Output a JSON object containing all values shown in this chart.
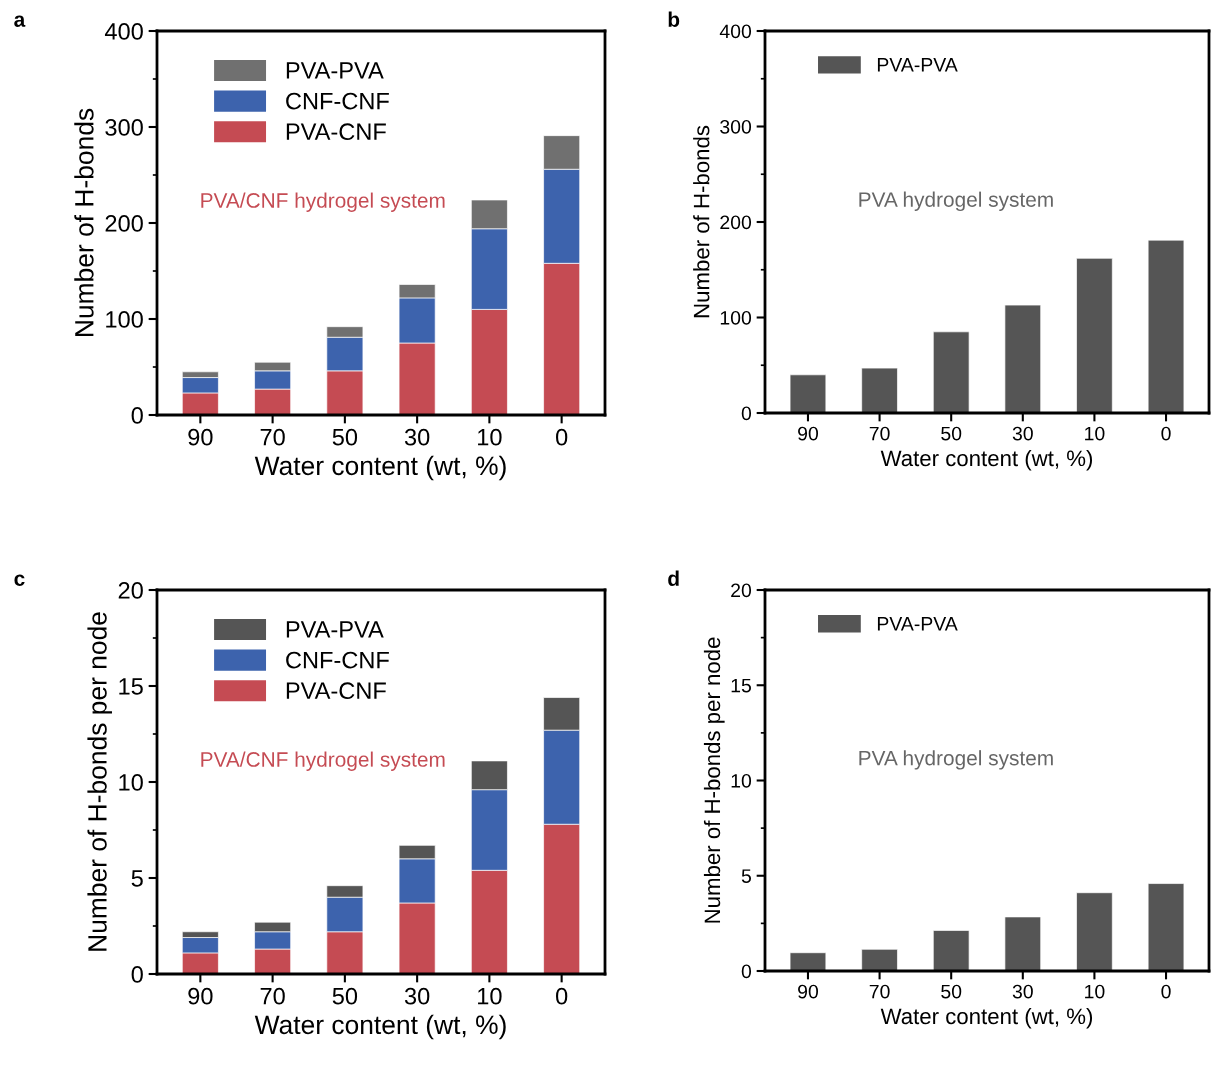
{
  "chart_data": [
    {
      "type": "bar",
      "title": "a",
      "stacked": true,
      "xlabel": "Water content (wt, %)",
      "ylabel": "Number of H-bonds",
      "categories": [
        "90",
        "70",
        "50",
        "30",
        "10",
        "0"
      ],
      "ylim": [
        0,
        400
      ],
      "yticks": [
        0,
        100,
        200,
        300,
        400
      ],
      "legend": "top left",
      "annotations": [
        "PVA/CNF hydrogel system"
      ],
      "series": [
        {
          "name": "PVA-CNF",
          "color": "#c54b53",
          "values": [
            23,
            27,
            46,
            75,
            110,
            158
          ]
        },
        {
          "name": "CNF-CNF",
          "color": "#3d63ad",
          "values": [
            16,
            19,
            35,
            47,
            84,
            98
          ]
        },
        {
          "name": "PVA-PVA",
          "color": "#707070",
          "values": [
            6,
            9,
            11,
            14,
            30,
            35
          ]
        }
      ]
    },
    {
      "type": "bar",
      "title": "b",
      "xlabel": "Water content (wt, %)",
      "ylabel": "Number of H-bonds",
      "categories": [
        "90",
        "70",
        "50",
        "30",
        "10",
        "0"
      ],
      "ylim": [
        0,
        400
      ],
      "yticks": [
        0,
        100,
        200,
        300,
        400
      ],
      "legend": "top left",
      "annotations": [
        "PVA hydrogel system"
      ],
      "series": [
        {
          "name": "PVA-PVA",
          "color": "#555555",
          "values": [
            40,
            47,
            85,
            113,
            162,
            181
          ]
        }
      ]
    },
    {
      "type": "bar",
      "title": "c",
      "stacked": true,
      "xlabel": "Water content (wt, %)",
      "ylabel": "Number of H-bonds per node",
      "categories": [
        "90",
        "70",
        "50",
        "30",
        "10",
        "0"
      ],
      "ylim": [
        0,
        20
      ],
      "yticks": [
        0,
        5,
        10,
        15,
        20
      ],
      "legend": "top left",
      "annotations": [
        "PVA/CNF hydrogel system"
      ],
      "series": [
        {
          "name": "PVA-CNF",
          "color": "#c54b53",
          "values": [
            1.1,
            1.3,
            2.2,
            3.7,
            5.4,
            7.8
          ]
        },
        {
          "name": "CNF-CNF",
          "color": "#3d63ad",
          "values": [
            0.8,
            0.9,
            1.8,
            2.3,
            4.2,
            4.9
          ]
        },
        {
          "name": "PVA-PVA",
          "color": "#555555",
          "values": [
            0.3,
            0.5,
            0.6,
            0.7,
            1.5,
            1.7
          ]
        }
      ]
    },
    {
      "type": "bar",
      "title": "d",
      "xlabel": "Water content (wt, %)",
      "ylabel": "Number of H-bonds per node",
      "categories": [
        "90",
        "70",
        "50",
        "30",
        "10",
        "0"
      ],
      "ylim": [
        0,
        20
      ],
      "yticks": [
        0,
        5,
        10,
        15,
        20
      ],
      "legend": "top left",
      "annotations": [
        "PVA hydrogel system"
      ],
      "series": [
        {
          "name": "PVA-PVA",
          "color": "#555555",
          "values": [
            0.96,
            1.14,
            2.13,
            2.84,
            4.11,
            4.59
          ]
        }
      ]
    }
  ]
}
